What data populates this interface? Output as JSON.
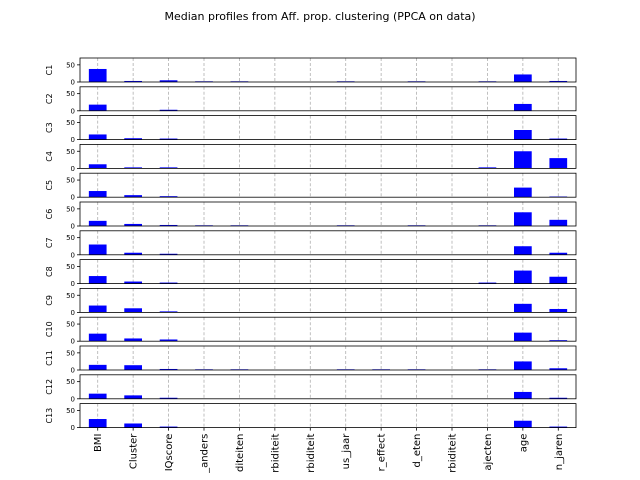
{
  "chart_data": {
    "type": "bar",
    "title": "Median profiles from Aff. prop. clustering (PPCA on data)",
    "categories": [
      "BMI",
      "Cluster",
      "IQscore",
      "_anders",
      "diteiten",
      "rbiditeit",
      "rbiditeit",
      "us_jaar",
      "r_effect",
      "d_eten",
      "rbiditeit",
      "ajecten",
      "age",
      "n_jaren"
    ],
    "ylim": [
      0,
      70
    ],
    "yticks": [
      0,
      50
    ],
    "bar_color": "#0000ff",
    "grid": "vertical dashed",
    "series": [
      {
        "name": "C1",
        "values": [
          38,
          3,
          5,
          2,
          2,
          0,
          0,
          2,
          0,
          2,
          0,
          2,
          22,
          3
        ]
      },
      {
        "name": "C2",
        "values": [
          18,
          0,
          3,
          0,
          0,
          0,
          0,
          0,
          0,
          0,
          0,
          0,
          20,
          0
        ]
      },
      {
        "name": "C3",
        "values": [
          15,
          4,
          3,
          0,
          0,
          0,
          0,
          0,
          0,
          0,
          0,
          0,
          28,
          3
        ]
      },
      {
        "name": "C4",
        "values": [
          12,
          3,
          3,
          0,
          0,
          0,
          0,
          0,
          0,
          0,
          0,
          3,
          50,
          30
        ]
      },
      {
        "name": "C5",
        "values": [
          18,
          6,
          3,
          0,
          0,
          0,
          0,
          0,
          0,
          0,
          0,
          0,
          28,
          2
        ]
      },
      {
        "name": "C6",
        "values": [
          15,
          6,
          3,
          2,
          2,
          0,
          0,
          2,
          0,
          2,
          0,
          2,
          40,
          18
        ]
      },
      {
        "name": "C7",
        "values": [
          30,
          6,
          3,
          0,
          0,
          0,
          0,
          0,
          0,
          0,
          0,
          0,
          25,
          6
        ]
      },
      {
        "name": "C8",
        "values": [
          22,
          6,
          3,
          0,
          0,
          0,
          0,
          0,
          0,
          0,
          0,
          3,
          38,
          20
        ]
      },
      {
        "name": "C9",
        "values": [
          20,
          12,
          3,
          0,
          0,
          0,
          0,
          0,
          0,
          0,
          0,
          0,
          25,
          10
        ]
      },
      {
        "name": "C10",
        "values": [
          22,
          8,
          5,
          0,
          0,
          0,
          0,
          0,
          0,
          0,
          0,
          0,
          25,
          3
        ]
      },
      {
        "name": "C11",
        "values": [
          15,
          14,
          3,
          2,
          2,
          0,
          0,
          2,
          2,
          2,
          0,
          2,
          25,
          5
        ]
      },
      {
        "name": "C12",
        "values": [
          15,
          10,
          3,
          0,
          0,
          0,
          0,
          0,
          0,
          0,
          0,
          0,
          20,
          3
        ]
      },
      {
        "name": "C13",
        "values": [
          25,
          12,
          3,
          0,
          0,
          0,
          0,
          0,
          0,
          0,
          0,
          0,
          20,
          3
        ]
      }
    ]
  }
}
